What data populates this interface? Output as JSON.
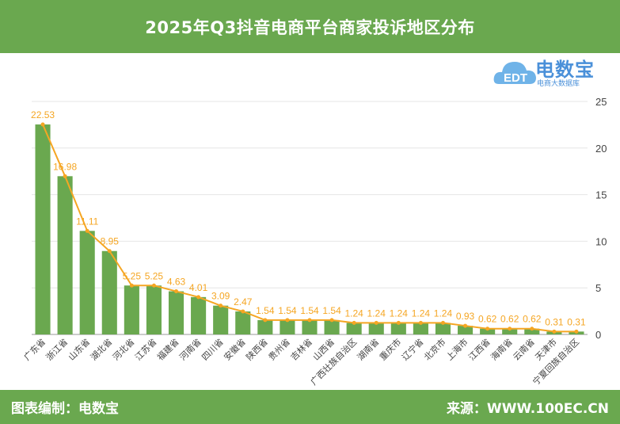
{
  "header": {
    "title": "2025年Q3抖音电商平台商家投诉地区分布"
  },
  "footer": {
    "left": "图表编制：电数宝",
    "right": "来源：WWW.100EC.CN"
  },
  "logo": {
    "brand": "电数宝",
    "sub": "电商大数据库",
    "mark": "EDT"
  },
  "colors": {
    "bar": "#6aa84f",
    "line": "#f5a623",
    "header": "#6aa84f",
    "logo": "#4a90d9"
  },
  "chart_data": {
    "type": "bar",
    "categories": [
      "广东省",
      "浙江省",
      "山东省",
      "湖北省",
      "河北省",
      "江苏省",
      "福建省",
      "河南省",
      "四川省",
      "安徽省",
      "陕西省",
      "贵州省",
      "吉林省",
      "山西省",
      "广西壮族自治区",
      "湖南省",
      "重庆市",
      "辽宁省",
      "北京市",
      "上海市",
      "江西省",
      "海南省",
      "云南省",
      "天津市",
      "宁夏回族自治区"
    ],
    "series": [
      {
        "values": [
          22.53,
          16.98,
          11.11,
          8.95,
          5.25,
          5.25,
          4.63,
          4.01,
          3.09,
          2.47,
          1.54,
          1.54,
          1.54,
          1.54,
          1.24,
          1.24,
          1.24,
          1.24,
          1.24,
          0.93,
          0.62,
          0.62,
          0.62,
          0.31,
          0.31
        ]
      }
    ],
    "data_labels": [
      "22.53",
      "16.98",
      "11.11",
      "8.95",
      "5.25",
      "5.25",
      "4.63",
      "4.01",
      "3.09",
      "2.47",
      "1.54",
      "1.54",
      "1.54",
      "1.54",
      "1.24",
      "1.24",
      "1.24",
      "1.24",
      "1.24",
      "0.93",
      "0.62",
      "0.62",
      "0.62",
      "0.31",
      "0.31"
    ],
    "overlay": "line",
    "ylim": [
      0,
      25
    ],
    "yticks": [
      "0",
      "5",
      "10",
      "15",
      "20",
      "25"
    ],
    "y_axis_position": "right",
    "grid": true,
    "xlabel": "",
    "ylabel": ""
  }
}
